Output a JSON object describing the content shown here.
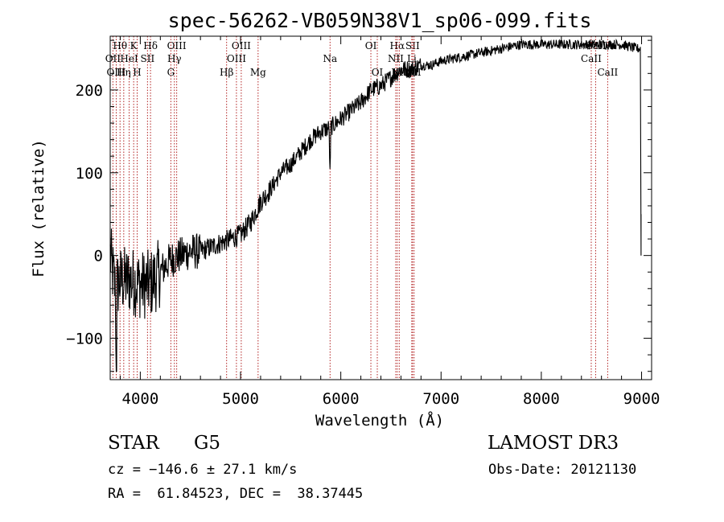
{
  "chart_data": {
    "type": "line",
    "title": "spec-56262-VB059N38V1_sp06-099.fits",
    "xlabel": "Wavelength (Å)",
    "ylabel": "Flux (relative)",
    "xlim": [
      3700,
      9100
    ],
    "ylim": [
      -150,
      265
    ],
    "x_ticks": [
      4000,
      5000,
      6000,
      7000,
      8000,
      9000
    ],
    "y_ticks": [
      -100,
      0,
      100,
      200
    ],
    "x_tick_labels": [
      "4000",
      "5000",
      "6000",
      "7000",
      "8000",
      "9000"
    ],
    "y_tick_labels": [
      "−100",
      "0",
      "100",
      "200"
    ],
    "line_color": "#000000",
    "marker_color": "#b22222",
    "spectrum_anchors": {
      "x": [
        3700,
        3750,
        3800,
        3900,
        4000,
        4100,
        4200,
        4300,
        4400,
        4500,
        4600,
        4700,
        4800,
        4900,
        5000,
        5100,
        5200,
        5300,
        5400,
        5500,
        5600,
        5700,
        5800,
        5900,
        6000,
        6100,
        6200,
        6300,
        6400,
        6500,
        6600,
        6700,
        6800,
        6900,
        7000,
        7200,
        7400,
        7600,
        7800,
        8000,
        8200,
        8400,
        8600,
        8800,
        8950,
        8990
      ],
      "y": [
        0,
        -40,
        -30,
        -30,
        -35,
        -35,
        -20,
        -5,
        0,
        5,
        5,
        10,
        15,
        20,
        25,
        40,
        65,
        80,
        100,
        110,
        125,
        140,
        150,
        155,
        165,
        175,
        185,
        200,
        205,
        215,
        225,
        225,
        230,
        230,
        235,
        240,
        245,
        250,
        255,
        255,
        255,
        255,
        255,
        255,
        250,
        250
      ]
    },
    "spectral_lines": [
      {
        "name": "Hθ",
        "wavelength": 3798,
        "row": 1
      },
      {
        "name": "OII",
        "wavelength": 3727,
        "row": 2
      },
      {
        "name": "OIII",
        "wavelength": 3760,
        "row": 3
      },
      {
        "name": "K",
        "wavelength": 3934,
        "row": 1
      },
      {
        "name": "HeI",
        "wavelength": 3889,
        "row": 2
      },
      {
        "name": "Hη",
        "wavelength": 3835,
        "row": 3
      },
      {
        "name": "H",
        "wavelength": 3969,
        "row": 3
      },
      {
        "name": "Hδ",
        "wavelength": 4102,
        "row": 1
      },
      {
        "name": "SII",
        "wavelength": 4072,
        "row": 2
      },
      {
        "name": "OIII",
        "wavelength": 4363,
        "row": 1
      },
      {
        "name": "Hγ",
        "wavelength": 4340,
        "row": 2
      },
      {
        "name": "G",
        "wavelength": 4305,
        "row": 3
      },
      {
        "name": "OIII",
        "wavelength": 5007,
        "row": 1
      },
      {
        "name": "OIII",
        "wavelength": 4959,
        "row": 2
      },
      {
        "name": "Hβ",
        "wavelength": 4861,
        "row": 3
      },
      {
        "name": "Mg",
        "wavelength": 5175,
        "row": 3
      },
      {
        "name": "Na",
        "wavelength": 5893,
        "row": 2
      },
      {
        "name": "OI",
        "wavelength": 6300,
        "row": 1
      },
      {
        "name": "OI",
        "wavelength": 6364,
        "row": 3
      },
      {
        "name": "Hα",
        "wavelength": 6563,
        "row": 1
      },
      {
        "name": "SII",
        "wavelength": 6716,
        "row": 1
      },
      {
        "name": "NII",
        "wavelength": 6548,
        "row": 2
      },
      {
        "name": "Li",
        "wavelength": 6708,
        "row": 2
      },
      {
        "name": "NII",
        "wavelength": 6583,
        "row": 3
      },
      {
        "name": "SII",
        "wavelength": 6731,
        "row": 3
      },
      {
        "name": "CaII",
        "wavelength": 8542,
        "row": 1
      },
      {
        "name": "CaII",
        "wavelength": 8498,
        "row": 2
      },
      {
        "name": "CaII",
        "wavelength": 8662,
        "row": 3
      }
    ]
  },
  "info": {
    "class_type": "STAR",
    "subclass": "G5",
    "survey": "LAMOST DR3",
    "redshift": "cz = −146.6 ± 27.1 km/s",
    "obs_date": "Obs-Date: 20121130",
    "coords": "RA =  61.84523, DEC =  38.37445"
  }
}
